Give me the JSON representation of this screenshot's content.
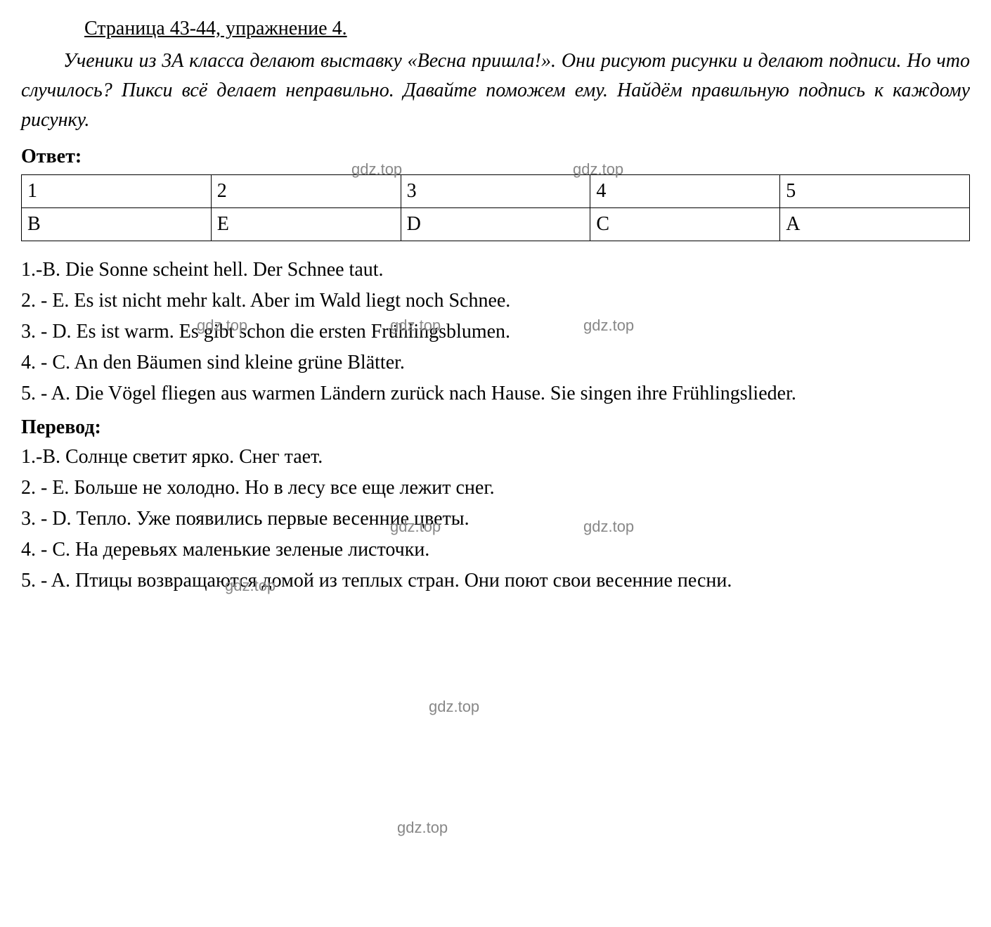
{
  "heading": "Страница 43-44, упражнение 4.",
  "intro": "Ученики из 3А класса делают выставку «Весна пришла!». Они рисуют рисунки и делают подписи. Но что случилось? Пикси всё делает неправильно. Давайте поможем ему. Найдём правильную подпись к каждому рисунку.",
  "answer_label": "Ответ:",
  "table": {
    "row1": [
      "1",
      "2",
      "3",
      "4",
      "5"
    ],
    "row2": [
      "B",
      "E",
      "D",
      "C",
      "A"
    ]
  },
  "answers": [
    "1.-B. Die Sonne scheint hell. Der Schnee taut.",
    "2. - E.  Es ist nicht mehr kalt. Aber im Wald liegt noch Schnee.",
    "3. - D. Es ist warm. Es gibt schon die ersten Frühlingsblumen.",
    "4. - C. An den Bäumen sind kleine grüne Blätter.",
    "5. - A. Die Vögel fliegen aus warmen Ländern zurück nach Hause. Sie singen ihre Frühlingslieder."
  ],
  "translation_label": "Перевод:",
  "translations": [
    "1.-B. Солнце светит ярко. Снег тает.",
    "2. - E. Больше не холодно. Но в лесу все еще лежит снег.",
    "3. - D. Тепло. Уже появились первые весенние цветы.",
    "4. - C. На деревьях маленькие зеленые листочки.",
    "5. - A. Птицы возвращаются домой из теплых стран. Они поют свои весенние песни."
  ],
  "watermark": "gdz.top",
  "colors": {
    "text": "#000000",
    "background": "#ffffff",
    "watermark": "#888888",
    "border": "#000000"
  },
  "typography": {
    "body_font": "Times New Roman",
    "body_fontsize": 28,
    "watermark_font": "Arial",
    "watermark_fontsize": 22
  }
}
